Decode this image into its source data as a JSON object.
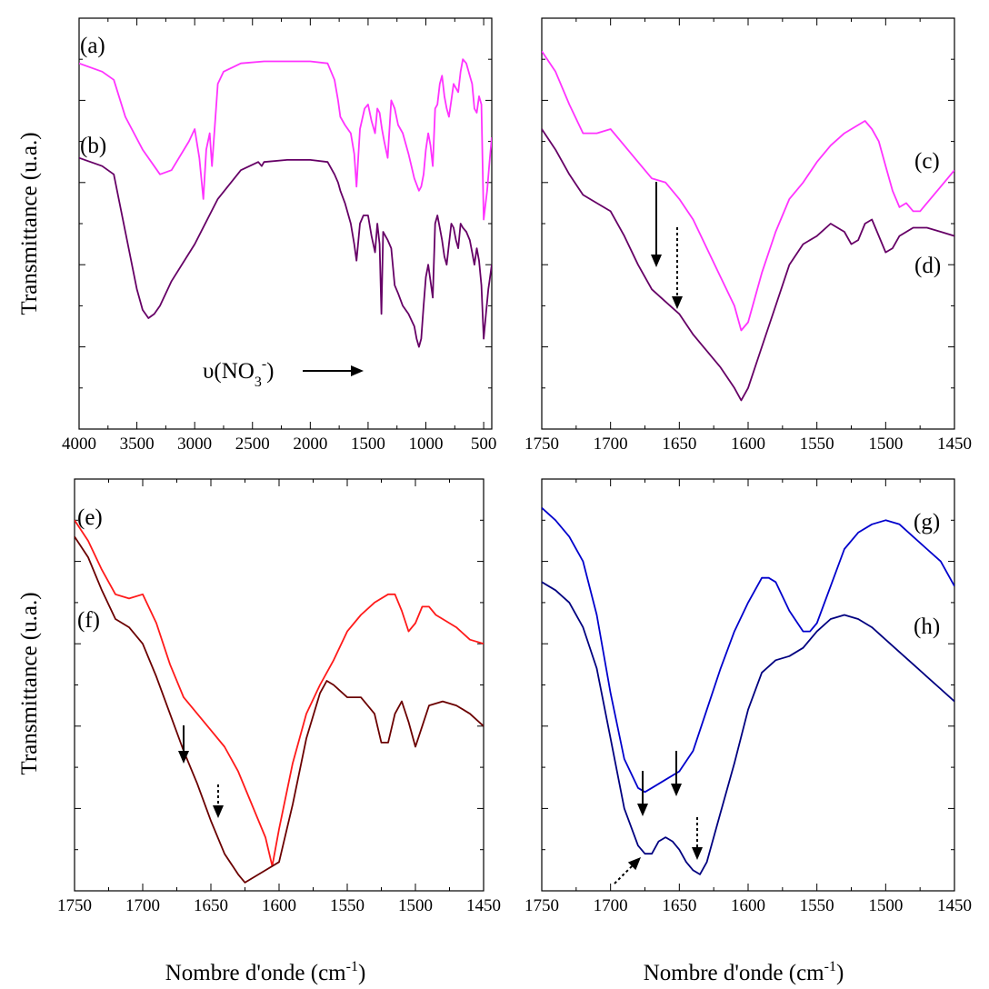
{
  "figure": {
    "y_axis_title": "Transmittance (u.a.)",
    "x_axis_title_base": "Nombre d'onde (cm",
    "x_axis_title_sup": "-1",
    "x_axis_title_end": ")"
  },
  "chart_data": [
    {
      "type": "line",
      "panel": "top-left",
      "xlim": [
        4000,
        430
      ],
      "ylim": [
        0,
        100
      ],
      "x_ticks": [
        4000,
        3500,
        3000,
        2500,
        2000,
        1500,
        1000,
        500
      ],
      "series": [
        {
          "name": "(a)",
          "color": "#ff33ff",
          "x": [
            4000,
            3800,
            3700,
            3600,
            3450,
            3300,
            3200,
            3050,
            3000,
            2960,
            2925,
            2900,
            2870,
            2850,
            2800,
            2750,
            2600,
            2400,
            2200,
            2000,
            1850,
            1790,
            1760,
            1740,
            1700,
            1650,
            1620,
            1600,
            1570,
            1530,
            1500,
            1470,
            1440,
            1420,
            1400,
            1380,
            1360,
            1330,
            1300,
            1270,
            1240,
            1200,
            1150,
            1100,
            1060,
            1040,
            1020,
            1000,
            980,
            960,
            940,
            920,
            900,
            880,
            860,
            840,
            820,
            800,
            780,
            760,
            720,
            700,
            680,
            650,
            620,
            600,
            580,
            560,
            540,
            520,
            500,
            470,
            450,
            430
          ],
          "y": [
            89,
            87,
            85,
            76,
            68,
            62,
            63,
            70,
            73,
            66,
            56,
            68,
            72,
            64,
            84,
            87,
            89,
            89.5,
            89.5,
            89.5,
            89,
            85,
            80,
            76,
            74,
            72,
            67,
            59,
            73,
            78,
            79,
            75,
            72,
            78,
            77,
            73,
            70,
            66,
            80,
            78,
            74,
            72,
            67,
            61,
            58,
            59,
            62,
            68,
            72,
            69,
            64,
            78,
            79,
            84,
            86,
            81,
            78,
            76,
            80,
            84,
            82,
            87,
            90,
            89,
            86,
            84,
            78,
            77,
            81,
            79,
            51,
            58,
            65,
            71
          ]
        },
        {
          "name": "(b)",
          "color": "#660066",
          "x": [
            4000,
            3800,
            3700,
            3600,
            3500,
            3450,
            3400,
            3350,
            3300,
            3200,
            3000,
            2800,
            2600,
            2450,
            2420,
            2400,
            2200,
            2000,
            1850,
            1790,
            1760,
            1740,
            1700,
            1650,
            1620,
            1600,
            1570,
            1540,
            1500,
            1470,
            1440,
            1420,
            1400,
            1385,
            1370,
            1350,
            1330,
            1300,
            1270,
            1240,
            1200,
            1150,
            1100,
            1080,
            1060,
            1040,
            1020,
            1000,
            980,
            960,
            940,
            920,
            900,
            880,
            860,
            840,
            820,
            800,
            780,
            760,
            740,
            720,
            700,
            680,
            650,
            620,
            600,
            580,
            560,
            540,
            520,
            500,
            480,
            460,
            450,
            430
          ],
          "y": [
            66,
            64,
            62,
            48,
            34,
            29,
            27,
            28,
            30,
            36,
            45,
            56,
            63,
            65,
            64,
            65,
            65.5,
            65.5,
            65,
            62,
            60,
            58,
            55,
            50,
            45,
            41,
            50,
            52,
            52,
            47,
            43,
            50,
            45,
            28,
            48,
            47,
            46,
            44,
            35,
            33,
            30,
            28,
            25,
            22,
            20,
            22,
            30,
            37,
            40,
            36,
            32,
            50,
            52,
            49,
            46,
            42,
            40,
            45,
            50,
            49,
            46,
            44,
            50,
            49,
            48,
            46,
            43,
            40,
            44,
            41,
            35,
            22,
            28,
            34,
            36,
            40
          ]
        }
      ],
      "labels": [
        "(a)",
        "(b)"
      ],
      "annotation": {
        "base": "υ(NO",
        "sub": "3",
        "sup": "-",
        "end": ")"
      }
    },
    {
      "type": "line",
      "panel": "top-right",
      "xlim": [
        1750,
        1450
      ],
      "ylim": [
        0,
        100
      ],
      "x_ticks": [
        1750,
        1700,
        1650,
        1600,
        1550,
        1500,
        1450
      ],
      "series": [
        {
          "name": "(c)",
          "color": "#ff33ff",
          "x": [
            1750,
            1740,
            1730,
            1720,
            1710,
            1700,
            1690,
            1680,
            1670,
            1660,
            1650,
            1640,
            1630,
            1620,
            1610,
            1605,
            1600,
            1590,
            1580,
            1570,
            1560,
            1550,
            1540,
            1530,
            1520,
            1515,
            1510,
            1505,
            1500,
            1495,
            1490,
            1485,
            1480,
            1475,
            1470,
            1460,
            1450
          ],
          "y": [
            92,
            87,
            79,
            72,
            72,
            73,
            69,
            65,
            61,
            60,
            56,
            51,
            44,
            37,
            30,
            24,
            26,
            38,
            48,
            56,
            60,
            65,
            69,
            72,
            74,
            75,
            73,
            70,
            64,
            58,
            54,
            55,
            53,
            53,
            55,
            59,
            63
          ]
        },
        {
          "name": "(d)",
          "color": "#660066",
          "x": [
            1750,
            1740,
            1730,
            1720,
            1710,
            1700,
            1690,
            1680,
            1670,
            1660,
            1650,
            1640,
            1630,
            1620,
            1610,
            1605,
            1600,
            1590,
            1580,
            1570,
            1560,
            1550,
            1540,
            1530,
            1525,
            1520,
            1515,
            1510,
            1505,
            1500,
            1495,
            1490,
            1480,
            1470,
            1460,
            1450
          ],
          "y": [
            73,
            68,
            62,
            57,
            55,
            53,
            47,
            40,
            34,
            31,
            28,
            23,
            19,
            15,
            10,
            7,
            10,
            20,
            30,
            40,
            45,
            47,
            50,
            48,
            45,
            46,
            50,
            51,
            47,
            43,
            44,
            47,
            49,
            49,
            48,
            47
          ]
        }
      ],
      "labels": [
        "(c)",
        "(d)"
      ]
    },
    {
      "type": "line",
      "panel": "bottom-left",
      "xlim": [
        1750,
        1450
      ],
      "ylim": [
        0,
        100
      ],
      "x_ticks": [
        1750,
        1700,
        1650,
        1600,
        1550,
        1500,
        1450
      ],
      "series": [
        {
          "name": "(e)",
          "color": "#ff1a1a",
          "x": [
            1750,
            1740,
            1730,
            1720,
            1710,
            1700,
            1690,
            1680,
            1670,
            1660,
            1650,
            1640,
            1630,
            1620,
            1610,
            1605,
            1600,
            1590,
            1580,
            1570,
            1560,
            1550,
            1540,
            1530,
            1520,
            1515,
            1510,
            1505,
            1500,
            1495,
            1490,
            1485,
            1480,
            1470,
            1460,
            1450
          ],
          "y": [
            90,
            85,
            78,
            72,
            71,
            72,
            65,
            55,
            47,
            43,
            39,
            35,
            29,
            21,
            13,
            6,
            15,
            31,
            43,
            50,
            56,
            63,
            67,
            70,
            72,
            72,
            68,
            63,
            65,
            69,
            69,
            67,
            66,
            64,
            61,
            60
          ]
        },
        {
          "name": "(f)",
          "color": "#6b0000",
          "x": [
            1750,
            1740,
            1730,
            1720,
            1710,
            1700,
            1690,
            1680,
            1670,
            1660,
            1650,
            1640,
            1630,
            1625,
            1620,
            1610,
            1600,
            1590,
            1580,
            1570,
            1565,
            1560,
            1550,
            1540,
            1530,
            1525,
            1520,
            1515,
            1510,
            1505,
            1500,
            1495,
            1490,
            1480,
            1470,
            1460,
            1450
          ],
          "y": [
            86,
            81,
            73,
            66,
            64,
            60,
            52,
            43,
            34,
            26,
            17,
            9,
            4,
            2,
            3,
            5,
            7,
            21,
            37,
            48,
            51,
            50,
            47,
            47,
            43,
            36,
            36,
            43,
            46,
            41,
            35,
            40,
            45,
            46,
            45,
            43,
            40
          ]
        }
      ],
      "labels": [
        "(e)",
        "(f)"
      ]
    },
    {
      "type": "line",
      "panel": "bottom-right",
      "xlim": [
        1750,
        1450
      ],
      "ylim": [
        0,
        100
      ],
      "x_ticks": [
        1750,
        1700,
        1650,
        1600,
        1550,
        1500,
        1450
      ],
      "series": [
        {
          "name": "(g)",
          "color": "#0000cc",
          "x": [
            1750,
            1740,
            1730,
            1720,
            1710,
            1700,
            1690,
            1680,
            1675,
            1670,
            1660,
            1650,
            1640,
            1630,
            1620,
            1610,
            1600,
            1590,
            1585,
            1580,
            1570,
            1560,
            1555,
            1550,
            1540,
            1530,
            1520,
            1510,
            1500,
            1490,
            1480,
            1470,
            1460,
            1450
          ],
          "y": [
            93,
            90,
            86,
            80,
            67,
            48,
            32,
            25,
            24,
            25,
            27,
            29,
            34,
            44,
            54,
            63,
            70,
            76,
            76,
            75,
            68,
            63,
            63,
            65,
            74,
            83,
            87,
            89,
            90,
            89,
            86,
            83,
            80,
            74
          ]
        },
        {
          "name": "(h)",
          "color": "#000080",
          "x": [
            1750,
            1740,
            1730,
            1720,
            1710,
            1700,
            1690,
            1680,
            1675,
            1670,
            1665,
            1660,
            1655,
            1650,
            1645,
            1640,
            1635,
            1630,
            1620,
            1610,
            1600,
            1590,
            1580,
            1570,
            1560,
            1550,
            1540,
            1530,
            1520,
            1510,
            1500,
            1490,
            1480,
            1470,
            1460,
            1450
          ],
          "y": [
            75,
            73,
            70,
            64,
            54,
            37,
            20,
            11,
            9,
            9,
            12,
            13,
            12,
            10,
            7,
            5,
            4,
            7,
            19,
            31,
            44,
            53,
            56,
            57,
            59,
            63,
            66,
            67,
            66,
            64,
            61,
            58,
            55,
            52,
            49,
            46
          ]
        }
      ],
      "labels": [
        "(g)",
        "(h)"
      ]
    }
  ]
}
